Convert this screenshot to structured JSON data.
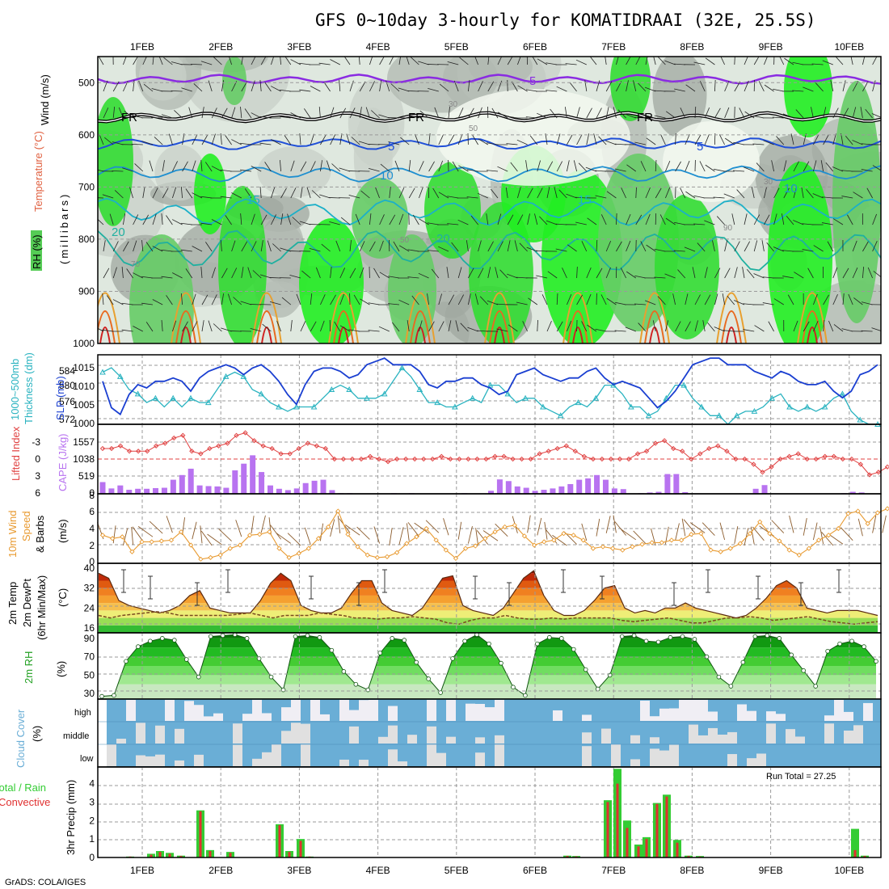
{
  "title": "GFS 0~10day 3-hourly for KOMATIDRAAI (32E, 25.5S)",
  "footer": "GrADS: COLA/IGES",
  "run_total": "Run Total = 27.25",
  "date_labels": [
    "1FEB",
    "2FEB",
    "3FEB",
    "4FEB",
    "5FEB",
    "6FEB",
    "7FEB",
    "8FEB",
    "9FEB",
    "10FEB"
  ],
  "panels": {
    "upper": {
      "ylabels": [
        "Wind (m/s)",
        "Temperature (°C)",
        "RH (%)",
        "(millibars)"
      ],
      "yticks": [
        "500",
        "600",
        "700",
        "800",
        "900",
        "1000"
      ],
      "contour_labels": [
        "-5",
        "FR",
        "5",
        "10",
        "15",
        "20",
        "30",
        "50",
        "70",
        "90"
      ]
    },
    "pressure": {
      "ylabel_left": "Thickness (dm)",
      "ylabel_left2": "1000~500mb",
      "ylabel_right": "SLP (mb)",
      "left_ticks": [
        "572",
        "576",
        "580",
        "584"
      ],
      "right_ticks": [
        "1015",
        "1010",
        "1005",
        "1000"
      ]
    },
    "instability": {
      "ylabel_left": "Lifted Index",
      "ylabel_right": "CAPE (J/kg)",
      "left_ticks": [
        "-3",
        "0",
        "3",
        "6"
      ],
      "right_ticks": [
        "1557",
        "1038",
        "519",
        "0"
      ]
    },
    "wind": {
      "ylabel": [
        "10m Wind",
        "Speed",
        "& Barbs",
        "(m/s)"
      ],
      "yticks": [
        "8",
        "6",
        "4",
        "2",
        "0"
      ]
    },
    "temp": {
      "ylabel": [
        "2m Temp",
        "2m DewPt",
        "(6hr Min/Max)",
        "(°C)"
      ],
      "yticks": [
        "40",
        "32",
        "24",
        "16"
      ]
    },
    "rh": {
      "ylabel": [
        "2m RH",
        "(%)"
      ],
      "yticks": [
        "90",
        "70",
        "50",
        "30"
      ]
    },
    "cloud": {
      "ylabel": [
        "Cloud Cover",
        "(%)"
      ],
      "levels": [
        "high",
        "middle",
        "low"
      ]
    },
    "precip": {
      "ylabel": [
        "3hr Precip (mm)",
        "Total / Rain",
        "Convective"
      ],
      "yticks": [
        "4",
        "3",
        "2",
        "1",
        "0"
      ]
    }
  },
  "colors": {
    "slp": "#1a3fd1",
    "thickness": "#2ab3c0",
    "lifted_index": "#e04040",
    "cape": "#b873f0",
    "wind": "#e89a30",
    "barb": "#8a5a2a",
    "rh_line": "#2a8a2a",
    "cloud": "#6aaed6",
    "precip_total": "#33cc33",
    "precip_conv": "#e03030",
    "minus5": "#8a2be2",
    "iso5": "#1f4fd8",
    "iso10": "#1e8fd0",
    "iso15": "#1cb0c8",
    "iso20": "#1fb0a0"
  },
  "chart_data": [
    {
      "type": "line",
      "name": "pressure",
      "series": [
        {
          "name": "SLP",
          "values": [
            1011,
            1003,
            1001,
            1007,
            1010,
            1009,
            1011,
            1011,
            1012,
            1011,
            1008,
            1012,
            1014,
            1015,
            1016,
            1015,
            1013,
            1015,
            1016,
            1014,
            1011,
            1007,
            1004,
            1010,
            1014,
            1015,
            1015,
            1014,
            1012,
            1013,
            1016,
            1017,
            1018,
            1016,
            1016,
            1016,
            1014,
            1010,
            1009,
            1011,
            1011,
            1012,
            1012,
            1010,
            1009,
            1007,
            1008,
            1013,
            1014,
            1015,
            1013,
            1012,
            1011,
            1012,
            1012,
            1014,
            1015,
            1012,
            1010,
            1011,
            1010,
            1009,
            1006,
            1003,
            1005,
            1008,
            1012,
            1016,
            1017,
            1018,
            1018,
            1016,
            1016,
            1016,
            1014,
            1013,
            1012,
            1014,
            1013,
            1011,
            1010,
            1010,
            1011,
            1008,
            1006,
            1008,
            1013,
            1014,
            1016
          ]
        },
        {
          "name": "Thickness",
          "values": [
            584,
            585,
            583,
            580,
            579,
            577,
            578,
            576,
            578,
            576,
            578,
            577,
            577,
            580,
            583,
            584,
            583,
            580,
            579,
            577,
            576,
            575,
            576,
            576,
            576,
            578,
            580,
            581,
            580,
            578,
            578,
            578,
            579,
            582,
            585,
            583,
            580,
            577,
            577,
            576,
            576,
            577,
            578,
            577,
            581,
            581,
            579,
            577,
            578,
            578,
            576,
            575,
            574,
            576,
            577,
            576,
            578,
            581,
            581,
            579,
            576,
            576,
            574,
            575,
            578,
            581,
            581,
            578,
            576,
            574,
            574,
            572,
            574,
            575,
            575,
            576,
            578,
            579,
            576,
            575,
            576,
            575,
            576,
            578,
            579,
            575,
            573,
            572,
            572
          ]
        }
      ],
      "left_range": [
        572,
        588
      ],
      "right_range": [
        998,
        1019
      ]
    },
    {
      "type": "bar",
      "name": "instability",
      "series": [
        {
          "name": "Lifted Index",
          "values": [
            -2,
            -2,
            -2.5,
            -1.5,
            -1.5,
            -1.5,
            -2.5,
            -3,
            -4,
            -4.5,
            -1.5,
            -1,
            -2,
            -2.5,
            -3,
            -4.5,
            -5,
            -3.5,
            -2.5,
            -2,
            -1,
            -1,
            -2,
            -3,
            -2.5,
            -2,
            0,
            0,
            0,
            0,
            -0.5,
            0,
            0.5,
            0,
            0,
            0,
            0,
            0,
            -0.5,
            0,
            0,
            0,
            0,
            0,
            -0.5,
            -0.5,
            0,
            0,
            0,
            -1,
            -1.5,
            -2,
            -2.5,
            -1.5,
            -0.5,
            0,
            0,
            0,
            0,
            0,
            -1,
            -1.5,
            -3,
            -3.5,
            -2,
            -1.5,
            0,
            -1,
            -2,
            -2.5,
            -1.5,
            0,
            0,
            1,
            2.5,
            1.5,
            0,
            -0.5,
            -1,
            0,
            0,
            -0.5,
            -0.5,
            0,
            0,
            1,
            3,
            2.5,
            1.5
          ]
        },
        {
          "name": "CAPE",
          "values": [
            350,
            160,
            250,
            120,
            150,
            150,
            170,
            180,
            420,
            560,
            750,
            250,
            230,
            220,
            180,
            700,
            900,
            1150,
            650,
            250,
            150,
            110,
            160,
            320,
            390,
            420,
            110,
            20,
            20,
            0,
            0,
            0,
            10,
            20,
            10,
            20,
            0,
            0,
            10,
            0,
            0,
            20,
            0,
            0,
            90,
            430,
            380,
            220,
            180,
            90,
            120,
            160,
            220,
            290,
            420,
            460,
            560,
            420,
            160,
            140,
            10,
            20,
            40,
            60,
            590,
            590,
            50,
            0,
            0,
            0,
            0,
            0,
            0,
            0,
            150,
            260,
            0,
            0,
            0,
            0,
            0,
            0,
            10,
            0,
            20,
            60,
            40,
            10,
            0
          ]
        }
      ],
      "left_range": [
        -6,
        6
      ],
      "right_range": [
        0,
        2076
      ]
    },
    {
      "type": "line",
      "name": "wind10m",
      "series": [
        {
          "name": "Wind Speed",
          "values": [
            3.2,
            2.8,
            3.0,
            1.2,
            2.4,
            2.4,
            2.5,
            2.6,
            3.6,
            2.0,
            0.3,
            0.5,
            0.8,
            1.6,
            2.0,
            3.2,
            3.3,
            3.6,
            1.6,
            0.5,
            1.0,
            1.6,
            2.8,
            4.2,
            6.1,
            3.3,
            1.8,
            0.8,
            0.5,
            0.6,
            1.1,
            2.2,
            3.0,
            4.0,
            2.6,
            1.4,
            0.4,
            1.6,
            1.9,
            2.8,
            3.6,
            4.2,
            4.4,
            3.1,
            2.0,
            2.4,
            2.6,
            3.4,
            3.2,
            2.6,
            1.6,
            1.8,
            1.6,
            1.4,
            1.8,
            2.1,
            2.3,
            2.3,
            2.6,
            2.6,
            3.3,
            3.4,
            1.4,
            1.2,
            1.6,
            2.2,
            3.4,
            4.8,
            3.4,
            2.5,
            1.4,
            0.8,
            1.6,
            2.6,
            3.2,
            4.0,
            5.8,
            6.1,
            4.6,
            5.9,
            6.4
          ]
        }
      ],
      "range": [
        0,
        8
      ]
    },
    {
      "type": "area",
      "name": "temp2m",
      "series": [
        {
          "name": "Temperature",
          "values": [
            38,
            36,
            27,
            25,
            24,
            23,
            22,
            23,
            25,
            29,
            31,
            24,
            23,
            22,
            22,
            22,
            27,
            34,
            38,
            35,
            25,
            23,
            22,
            22,
            24,
            30,
            35,
            35,
            26,
            23,
            22,
            21,
            24,
            30,
            36,
            37,
            25,
            23,
            22,
            21,
            24,
            30,
            36,
            39,
            29,
            23,
            21,
            21,
            23,
            27,
            32,
            33,
            24,
            22,
            23,
            22,
            24,
            24,
            26,
            24,
            23,
            22,
            21,
            20,
            21,
            24,
            28,
            33,
            35,
            32,
            24,
            23,
            22,
            23,
            23,
            23,
            22,
            21
          ]
        },
        {
          "name": "DewPt",
          "values": [
            21,
            20,
            21,
            21.5,
            22,
            22.5,
            22,
            21,
            21,
            21,
            21,
            21,
            21.5,
            22,
            21,
            20,
            21,
            21,
            21,
            22,
            21.5,
            21,
            20,
            20,
            19.5,
            20,
            20,
            20.5,
            20,
            19.5,
            18,
            17.5,
            19,
            20,
            20,
            21,
            20,
            19.5,
            19.5,
            20,
            19.5,
            20,
            20,
            20,
            20,
            19,
            18.5,
            19,
            19.5,
            20,
            19,
            18,
            18,
            19,
            20,
            20,
            20.5,
            20,
            19,
            19.5,
            20,
            20.5,
            19.5,
            18.5,
            18,
            17.5,
            18,
            18.5
          ]
        }
      ],
      "range": [
        14,
        42
      ]
    },
    {
      "type": "area",
      "name": "rh2m",
      "series": [
        {
          "name": "RH",
          "values": [
            27,
            28,
            65,
            81,
            87,
            90,
            88,
            67,
            48,
            92,
            93,
            94,
            90,
            68,
            48,
            34,
            92,
            93,
            91,
            77,
            54,
            40,
            34,
            74,
            90,
            88,
            64,
            46,
            31,
            68,
            87,
            94,
            84,
            63,
            37,
            28,
            84,
            91,
            90,
            78,
            56,
            35,
            50,
            92,
            93,
            87,
            86,
            91,
            92,
            89,
            70,
            48,
            38,
            64,
            92,
            93,
            90,
            72,
            55,
            38,
            76,
            84,
            87,
            81,
            65
          ]
        }
      ],
      "range": [
        24,
        96
      ]
    },
    {
      "type": "bar",
      "name": "cloud",
      "categories": [
        "high",
        "middle",
        "low"
      ],
      "range": [
        0,
        100
      ]
    },
    {
      "type": "bar",
      "name": "precip",
      "series": [
        {
          "name": "Total / Rain",
          "values": [
            0.05,
            0.2,
            0.35,
            0.25,
            0.1,
            2.55,
            0.4,
            0.3,
            1.8,
            0.35,
            1.0,
            0.05,
            0.1,
            0.08,
            3.1,
            4.8,
            2.0,
            0.7,
            1.1,
            2.95,
            3.4,
            0.95,
            0.1,
            0.08,
            1.55,
            0.1
          ]
        },
        {
          "name": "Convective",
          "values": [
            0.05,
            0.15,
            0.3,
            0.2,
            0.08,
            2.5,
            0.35,
            0.25,
            1.75,
            0.3,
            0.9,
            0.05,
            0.08,
            0.06,
            3.0,
            4.0,
            1.6,
            0.6,
            1.0,
            2.9,
            3.3,
            0.8,
            0.08,
            0.05,
            0.4,
            0.08
          ]
        }
      ],
      "range": [
        0,
        4.9
      ]
    }
  ]
}
